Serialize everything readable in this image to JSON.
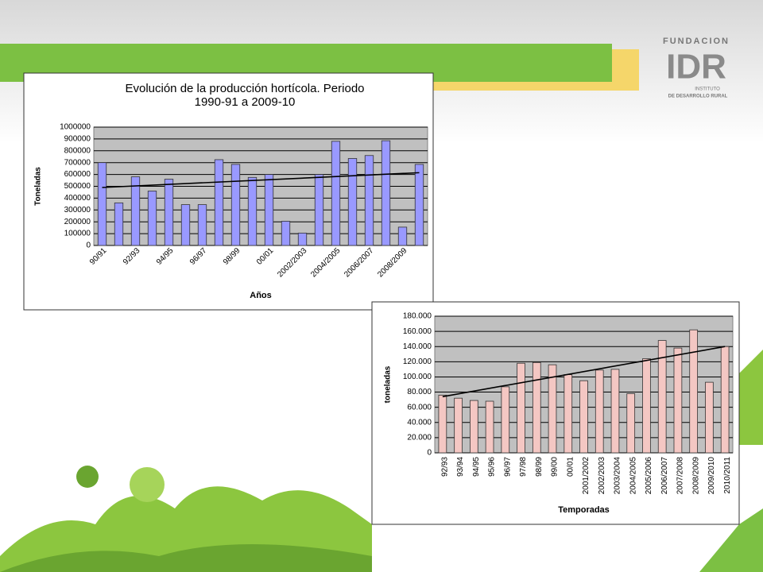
{
  "logo": {
    "top": "FUNDACION",
    "mark": "IDR",
    "line1": "INSTITUTO",
    "line2": "DE DESARROLLO RURAL"
  },
  "chart_data": [
    {
      "type": "bar",
      "title": "Evolución de la producción hortícola. Periodo 1990-91 a 2009-10",
      "y_label": "Toneladas",
      "x_label": "Años",
      "color": "#9999ff",
      "grid": true,
      "categories": [
        "90/91",
        null,
        "92/93",
        null,
        "94/95",
        null,
        "96/97",
        null,
        "98/99",
        null,
        "00/01",
        null,
        "2002/2003",
        null,
        "2004/2005",
        null,
        "2006/2007",
        null,
        "2008/2009",
        null
      ],
      "values": [
        700000,
        360000,
        580000,
        460000,
        560000,
        345000,
        345000,
        725000,
        685000,
        575000,
        600000,
        205000,
        105000,
        600000,
        880000,
        735000,
        760000,
        885000,
        155000,
        685000
      ],
      "trend": [
        490000,
        615000
      ],
      "ylim": [
        0,
        1000000
      ],
      "yticks": [
        0,
        100000,
        200000,
        300000,
        400000,
        500000,
        600000,
        700000,
        800000,
        900000,
        1000000
      ]
    },
    {
      "type": "bar",
      "y_label": "toneladas",
      "x_label": "Temporadas",
      "color": "#f4c7c3",
      "grid": true,
      "categories": [
        "92/93",
        "93/94",
        "94/95",
        "95/96",
        "96/97",
        "97/98",
        "98/99",
        "99/00",
        "00/01",
        "2001/2002",
        "2002/2003",
        "2003/2004",
        "2004/2005",
        "2005/2006",
        "2006/2007",
        "2007/2008",
        "2008/2009",
        "2009/2010",
        "2010/2011"
      ],
      "values": [
        76000,
        72000,
        69000,
        68000,
        87000,
        118000,
        119000,
        116000,
        103000,
        95000,
        109000,
        110000,
        78000,
        124000,
        148000,
        138000,
        162000,
        93000,
        140000
      ],
      "trend": [
        74000,
        140000
      ],
      "ylim": [
        0,
        180000
      ],
      "yticks": [
        0,
        {
          "value": 20000,
          "label": "20.000"
        },
        {
          "value": 40000,
          "label": "40.000"
        },
        {
          "value": 60000,
          "label": "60.000"
        },
        {
          "value": 80000,
          "label": "80.000"
        },
        {
          "value": 100000,
          "label": "100.000"
        },
        {
          "value": 120000,
          "label": "120.000"
        },
        {
          "value": 140000,
          "label": "140.000"
        },
        {
          "value": 160000,
          "label": "160.000"
        },
        {
          "value": 180000,
          "label": "180.000"
        }
      ]
    }
  ]
}
